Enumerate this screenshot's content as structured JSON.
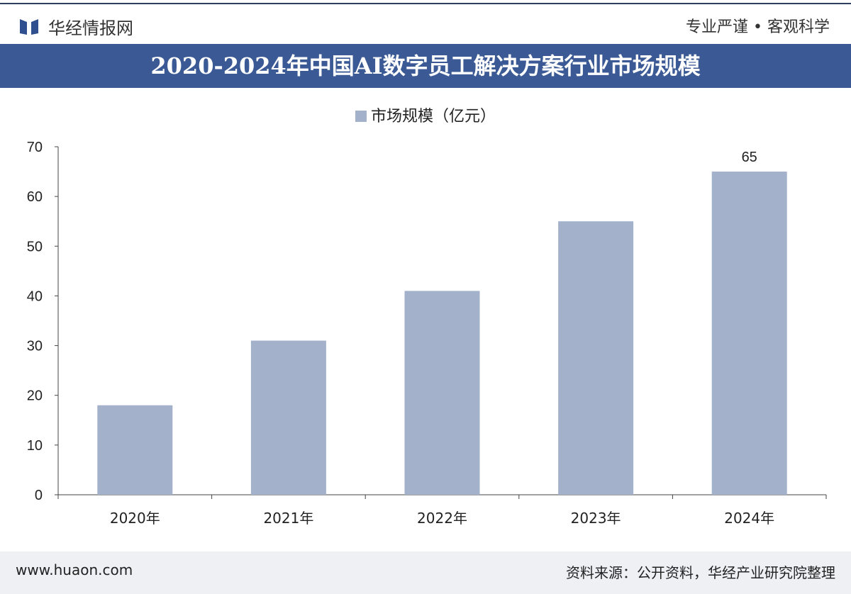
{
  "header": {
    "brand": "华经情报网",
    "slogan": "专业严谨 • 客观科学"
  },
  "footer": {
    "url": "www.huaon.com",
    "source": "资料来源：公开资料，华经产业研究院整理"
  },
  "colors": {
    "bar": "#a3b1ca",
    "title_bg": "#3b5a95"
  },
  "chart_data": {
    "type": "bar",
    "title": "2020-2024年中国AI数字员工解决方案行业市场规模",
    "legend": "市场规模（亿元）",
    "categories": [
      "2020年",
      "2021年",
      "2022年",
      "2023年",
      "2024年"
    ],
    "values": [
      18,
      31,
      41,
      55,
      65
    ],
    "data_labels": [
      null,
      null,
      null,
      null,
      "65"
    ],
    "yticks": [
      "0",
      "10",
      "20",
      "30",
      "40",
      "50",
      "60",
      "70"
    ],
    "ylim": [
      0,
      70
    ],
    "xlabel": "",
    "ylabel": "",
    "grid": false,
    "legend_position": "top-center"
  }
}
